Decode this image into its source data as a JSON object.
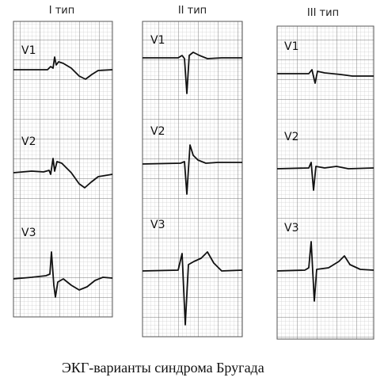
{
  "panels": [
    {
      "title": "I тип",
      "leads": [
        "V1",
        "V2",
        "V3"
      ]
    },
    {
      "title": "II тип",
      "leads": [
        "V1",
        "V2",
        "V3"
      ]
    },
    {
      "title": "III тип",
      "leads": [
        "V1",
        "V2",
        "V3"
      ]
    }
  ],
  "caption": "ЭКГ-варианты синдрома Бругада"
}
